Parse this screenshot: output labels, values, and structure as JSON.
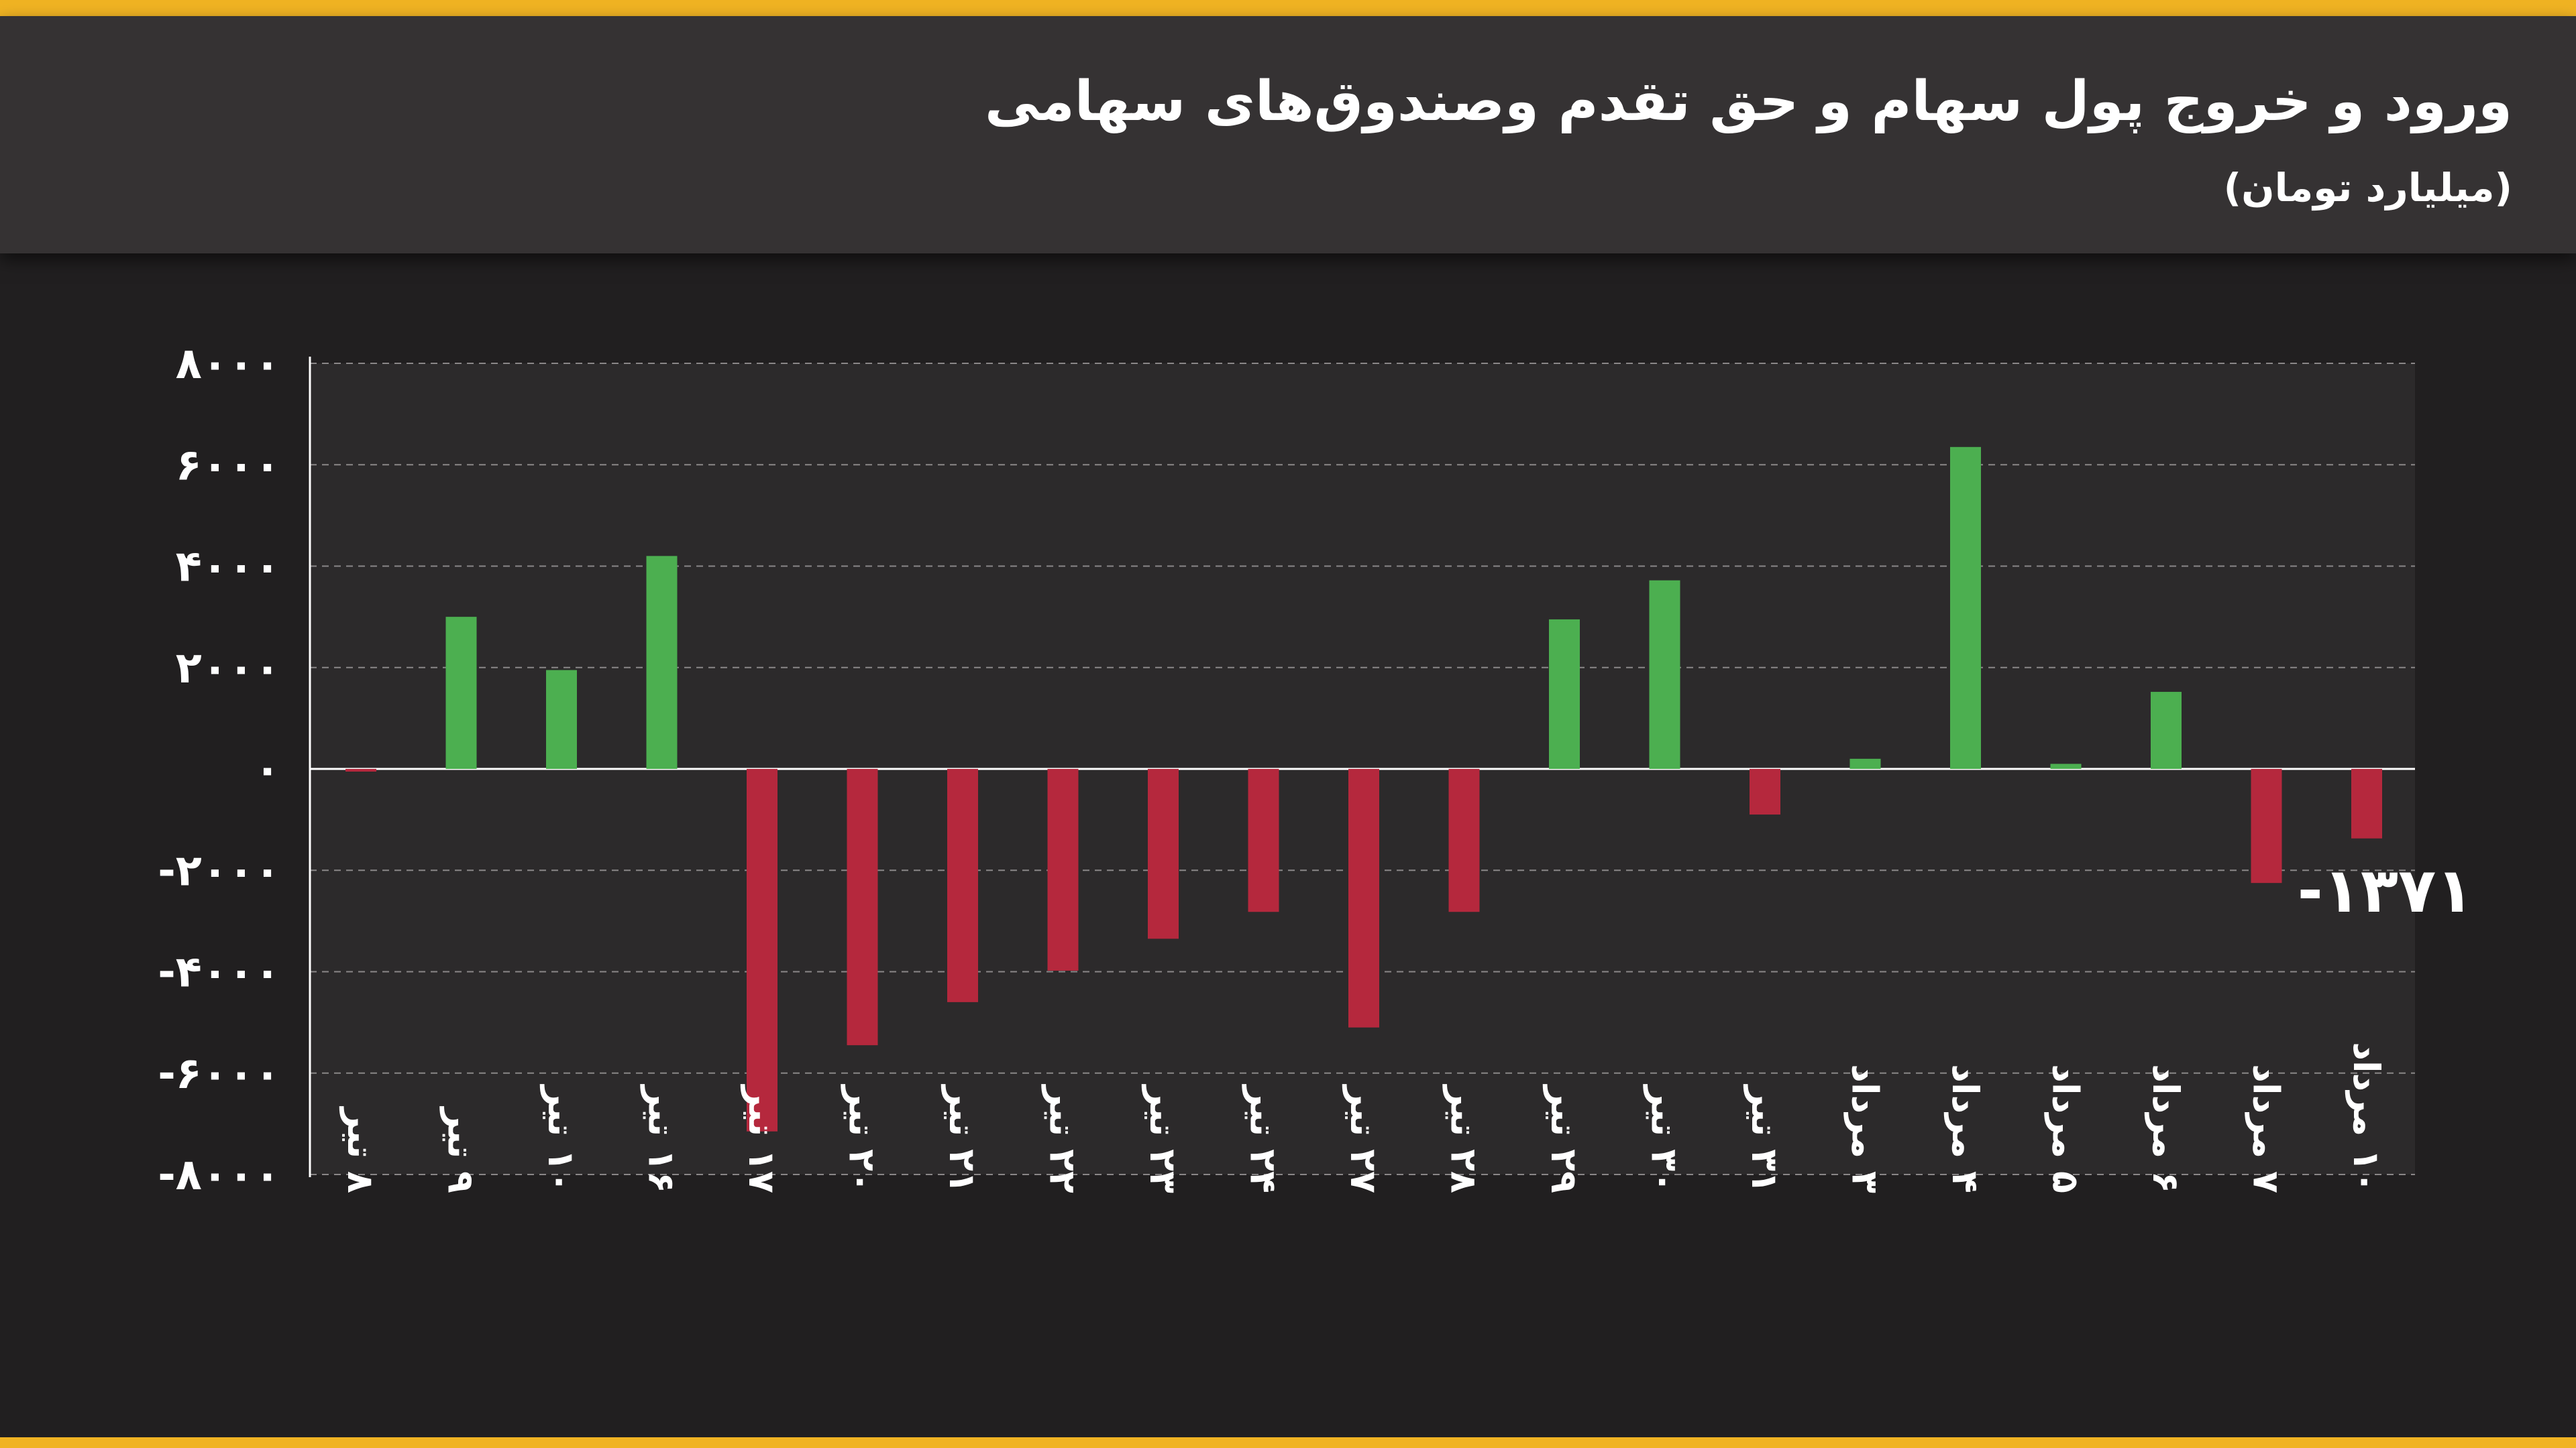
{
  "header": {
    "title": "ورود و خروج پول سهام و حق تقدم وصندوق‌های سهامی",
    "subtitle": "(میلیارد تومان)"
  },
  "colors": {
    "positive": "#4caf50",
    "negative": "#b5283d",
    "accent": "#f0b323",
    "header_bg": "#353233",
    "page_bg": "#211f20",
    "plot_bg": "#2c2a2b"
  },
  "chart_data": {
    "type": "bar",
    "title": "ورود و خروج پول سهام و حق تقدم وصندوق‌های سهامی",
    "ylabel": "",
    "xlabel": "",
    "ylim": [
      -8000,
      8000
    ],
    "y_ticks": [
      8000,
      6000,
      4000,
      2000,
      0,
      -2000,
      -4000,
      -6000,
      -8000
    ],
    "y_tick_labels": [
      "۸۰۰۰",
      "۶۰۰۰",
      "۴۰۰۰",
      "۲۰۰۰",
      "۰",
      "-۲۰۰۰",
      "-۴۰۰۰",
      "-۶۰۰۰",
      "-۸۰۰۰"
    ],
    "grid": true,
    "categories": [
      "۸ تیر",
      "۹ تیر",
      "۱۰ تیر",
      "۱۶ تیر",
      "۱۷ تیر",
      "۲۰ تیر",
      "۲۱ تیر",
      "۲۲ تیر",
      "۲۳ تیر",
      "۲۴ تیر",
      "۲۷ تیر",
      "۲۸ تیر",
      "۲۹ تیر",
      "۳۰ تیر",
      "۳۱ تیر",
      "۳ مرداد",
      "۴ مرداد",
      "۵ مرداد",
      "۶ مرداد",
      "۷ مرداد",
      "۱۰ مرداد"
    ],
    "values": [
      -50,
      3000,
      1950,
      4200,
      -7150,
      -5450,
      -4600,
      -3980,
      -3350,
      -2820,
      -5100,
      -2820,
      2950,
      3720,
      -900,
      200,
      6350,
      100,
      1520,
      -2250,
      -1371
    ],
    "annotations": [
      {
        "category": "۱۰ مرداد",
        "text": "-۱۳۷۱"
      }
    ]
  }
}
